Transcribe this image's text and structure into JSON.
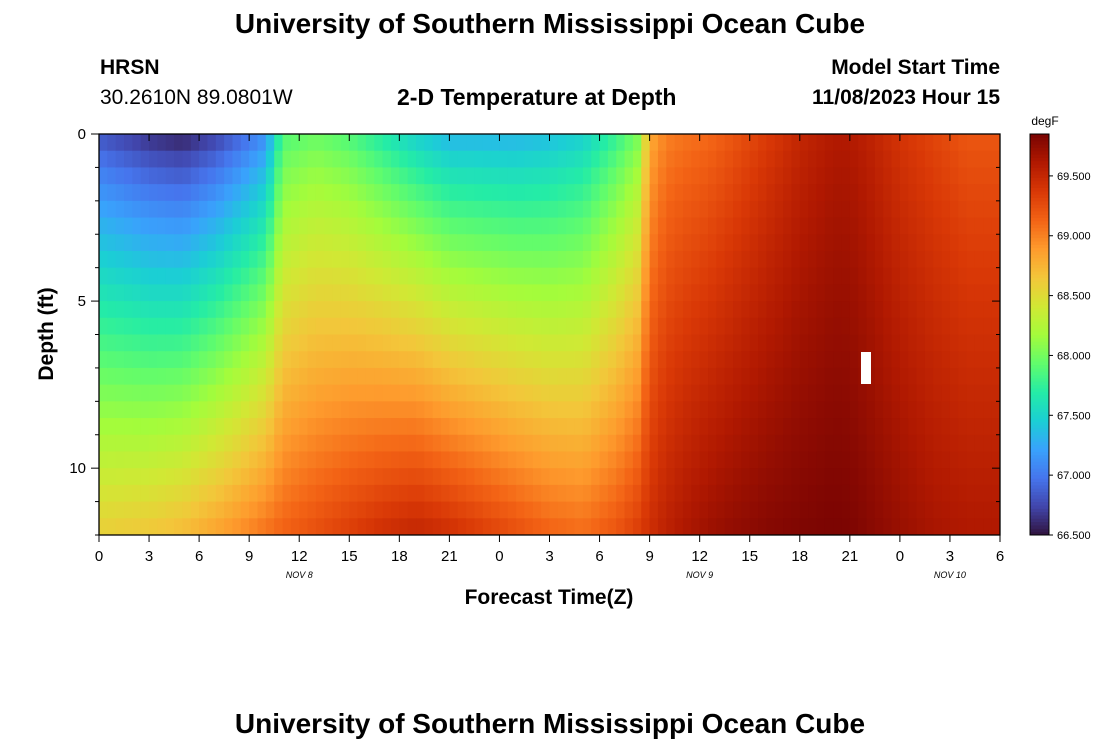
{
  "header": {
    "title": "University of Southern Mississippi Ocean Cube",
    "station": "HRSN",
    "coords": "30.2610N  89.0801W",
    "subtitle": "2-D Temperature at Depth",
    "model_start_label": "Model Start Time",
    "model_start_value": "11/08/2023 Hour 15"
  },
  "footer": {
    "title": "University of Southern Mississippi Ocean Cube"
  },
  "colors": {
    "colormap": [
      "#30123b",
      "#4145ab",
      "#4675ed",
      "#39a2fc",
      "#1bcfd4",
      "#24eca6",
      "#61fc6c",
      "#a4fc3b",
      "#d1e834",
      "#f3c63a",
      "#fe9b2d",
      "#f36315",
      "#d93806",
      "#b11901",
      "#7a0402"
    ]
  },
  "chart_data": {
    "type": "heatmap",
    "title": "2-D Temperature at Depth",
    "xlabel": "Forecast Time(Z)",
    "ylabel": "Depth (ft)",
    "x_tick_labels": [
      "0",
      "3",
      "6",
      "9",
      "12",
      "15",
      "18",
      "21",
      "0",
      "3",
      "6",
      "9",
      "12",
      "15",
      "18",
      "21",
      "0",
      "3",
      "6"
    ],
    "x_range_hours": [
      0,
      54
    ],
    "date_labels": [
      {
        "label": "NOV 8",
        "hour": 12
      },
      {
        "label": "NOV 9",
        "hour": 36
      },
      {
        "label": "NOV 10",
        "hour": 51
      }
    ],
    "y_ticks": [
      0,
      5,
      10
    ],
    "y_range": [
      0,
      12
    ],
    "depth_rows": [
      0.25,
      0.75,
      1.25,
      1.75,
      2.25,
      2.75,
      3.25,
      3.75,
      4.25,
      4.75,
      5.25,
      5.75,
      6.25,
      6.75,
      7.25,
      7.75,
      8.25,
      8.75,
      9.25,
      9.75,
      10.25,
      10.75,
      11.25,
      11.75
    ],
    "colorbar": {
      "unit": "degF",
      "min": 66.5,
      "max": 69.85,
      "tick_values": [
        66.5,
        67.0,
        67.5,
        68.0,
        68.5,
        69.0,
        69.5
      ],
      "tick_labels": [
        "66.500",
        "67.000",
        "67.500",
        "68.000",
        "68.500",
        "69.000",
        "69.500"
      ]
    },
    "profiles": {
      "hours": [
        0,
        3,
        5,
        7,
        9,
        10,
        11,
        13,
        15,
        17,
        19,
        21,
        23,
        25,
        27,
        29,
        31,
        32.3,
        33,
        34,
        35,
        36.5,
        38,
        40,
        42,
        44,
        45,
        46,
        48,
        50,
        52,
        54
      ],
      "surface_degF": [
        66.8,
        66.62,
        66.55,
        66.7,
        66.95,
        67.1,
        67.85,
        67.95,
        67.85,
        67.65,
        67.45,
        67.3,
        67.3,
        67.3,
        67.35,
        67.45,
        67.75,
        68.0,
        68.8,
        69.0,
        69.05,
        69.1,
        69.2,
        69.35,
        69.5,
        69.6,
        69.6,
        69.55,
        69.4,
        69.3,
        69.2,
        69.2
      ],
      "bottom_degF": [
        68.6,
        68.65,
        68.72,
        68.85,
        69.0,
        69.08,
        69.15,
        69.25,
        69.35,
        69.45,
        69.52,
        69.45,
        69.35,
        69.25,
        69.15,
        69.1,
        69.22,
        69.35,
        69.45,
        69.55,
        69.62,
        69.7,
        69.75,
        69.8,
        69.83,
        69.85,
        69.84,
        69.8,
        69.72,
        69.65,
        69.62,
        69.62
      ]
    }
  }
}
